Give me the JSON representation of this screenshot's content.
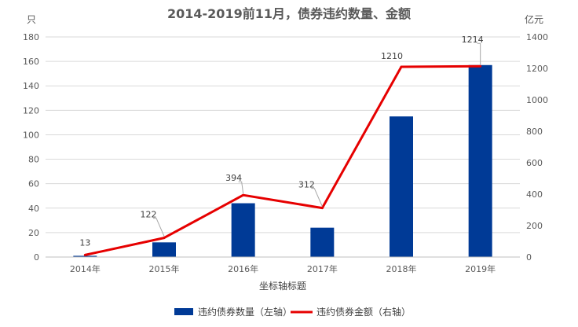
{
  "chart_data": {
    "type": "bar+line",
    "title": "2014-2019前11月，债券违约数量、金额",
    "xlabel": "坐标轴标题",
    "y_left_unit": "只",
    "y_right_unit": "亿元",
    "categories": [
      "2014年",
      "2015年",
      "2016年",
      "2017年",
      "2018年",
      "2019年"
    ],
    "ylim_left": [
      0,
      180
    ],
    "ylim_right": [
      0,
      1400
    ],
    "y_left_ticks": [
      "0",
      "20",
      "40",
      "60",
      "80",
      "100",
      "120",
      "140",
      "160",
      "180"
    ],
    "y_right_ticks": [
      "0",
      "200",
      "400",
      "600",
      "800",
      "1000",
      "1200",
      "1400"
    ],
    "grid": true,
    "legend_position": "bottom",
    "series": [
      {
        "name": "违约债券数量（左轴）",
        "type": "bar",
        "axis": "left",
        "color": "#003a96",
        "values": [
          1,
          12,
          44,
          24,
          115,
          157
        ]
      },
      {
        "name": "违约债券金额（右轴）",
        "type": "line",
        "axis": "right",
        "color": "#e60000",
        "values": [
          13,
          122,
          394,
          312,
          1210,
          1214
        ],
        "labels": [
          "13",
          "122",
          "394",
          "312",
          "1210",
          "1214"
        ]
      }
    ]
  }
}
